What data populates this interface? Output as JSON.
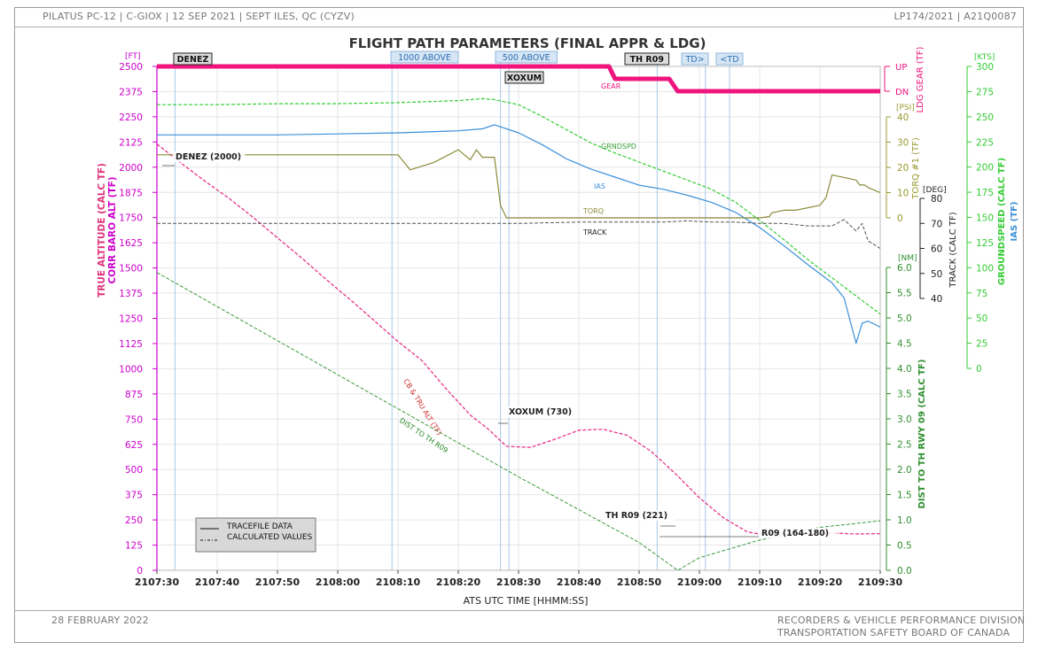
{
  "header": {
    "left": "PILATUS PC-12 | C-GIOX | 12 SEP 2021 | SEPT ILES, QC (CYZV)",
    "right": "LP174/2021 | A21Q0087"
  },
  "footer": {
    "date": "28 FEBRUARY 2022",
    "division": "RECORDERS & VEHICLE PERFORMANCE DIVISION",
    "board": "TRANSPORTATION SAFETY BOARD OF CANADA"
  },
  "colors": {
    "altitude": "#e8338a",
    "gear": "#f0147e",
    "groundspeed": "#33cc33",
    "ias": "#3a8fd8",
    "torq": "#8a8a3a",
    "track": "#555555",
    "distance": "#3a9a3a",
    "axis_left": "#cc00cc",
    "axis_gs": "#33cc33",
    "axis_ias": "#3a8fd8",
    "axis_torq": "#9a9a30",
    "axis_track": "#222222",
    "axis_dist": "#2f8f2f",
    "event_line": "#a8c8e8"
  },
  "chart_data": {
    "type": "line",
    "title": "FLIGHT PATH PARAMETERS (FINAL APPR & LDG)",
    "xlabel": "ATS UTC TIME [HHMM:SS]",
    "x_ticks": [
      "2107:30",
      "2107:40",
      "2107:50",
      "2108:00",
      "2108:10",
      "2108:20",
      "2108:30",
      "2108:40",
      "2108:50",
      "2109:00",
      "2109:10",
      "2109:20",
      "2109:30"
    ],
    "xlim_seconds_after_2107_30": [
      0,
      60
    ],
    "axes": {
      "altitude": {
        "unit": "[FT]",
        "label": "TRUE ALTITUDE (CALC TF)",
        "label2": "CORR BARO ALT (TF)",
        "range": [
          0,
          2500
        ],
        "ticks": [
          "0",
          "125",
          "250",
          "375",
          "500",
          "625",
          "750",
          "875",
          "1000",
          "1125",
          "1250",
          "1375",
          "1500",
          "1625",
          "1750",
          "1875",
          "2000",
          "2125",
          "2250",
          "2375",
          "2500"
        ]
      },
      "gear": {
        "label": "LDG GEAR (TF)",
        "states": [
          "UP",
          "DN"
        ]
      },
      "torq": {
        "unit": "[PSI]",
        "label": "TORQ #1 (TF)",
        "range": [
          0,
          40
        ],
        "ticks": [
          "0",
          "10",
          "20",
          "30",
          "40"
        ]
      },
      "track": {
        "unit": "[DEG]",
        "label": "TRACK (CALC TF)",
        "range": [
          40,
          80
        ],
        "ticks": [
          "40",
          "50",
          "60",
          "70",
          "80"
        ]
      },
      "distance": {
        "unit": "[NM]",
        "label": "DIST TO TH RWY 09 (CALC TF)",
        "range": [
          0,
          6
        ],
        "ticks": [
          "0.0",
          "0.5",
          "1.0",
          "1.5",
          "2.0",
          "2.5",
          "3.0",
          "3.5",
          "4.0",
          "4.5",
          "5.0",
          "5.5",
          "6.0"
        ]
      },
      "speed": {
        "unit": "[KTS]",
        "label_gs": "GROUNDSPEED (CALC TF)",
        "label_ias": "IAS (TF)",
        "range": [
          0,
          300
        ],
        "ticks": [
          "0",
          "25",
          "50",
          "75",
          "100",
          "125",
          "150",
          "175",
          "200",
          "225",
          "250",
          "275",
          "300"
        ]
      }
    },
    "series": [
      {
        "name": "CB & TRU ALT (TF)",
        "axis": "altitude",
        "x": [
          0,
          2,
          4,
          6,
          8,
          10,
          12,
          14,
          16,
          18,
          20,
          22,
          24,
          26,
          27.5,
          29,
          31,
          33,
          35,
          37,
          39,
          41,
          43,
          45,
          47,
          49,
          50,
          52,
          54,
          56,
          58,
          60
        ],
        "y": [
          2115,
          2020,
          1930,
          1845,
          1750,
          1650,
          1550,
          1445,
          1345,
          1240,
          1135,
          1040,
          900,
          770,
          700,
          615,
          610,
          650,
          695,
          700,
          670,
          590,
          480,
          360,
          260,
          190,
          180,
          180,
          180,
          185,
          180,
          182
        ]
      },
      {
        "name": "GRNDSPD",
        "axis": "speed",
        "x": [
          0,
          5,
          10,
          15,
          20,
          25,
          27,
          28,
          30,
          32,
          34,
          36,
          38,
          40,
          42,
          44,
          46,
          48,
          50,
          52,
          54,
          56,
          58,
          60
        ],
        "y": [
          262,
          262,
          263,
          263,
          264,
          266,
          268,
          267,
          262,
          250,
          237,
          224,
          214,
          205,
          196,
          187,
          178,
          165,
          147,
          128,
          108,
          90,
          72,
          54
        ]
      },
      {
        "name": "IAS",
        "axis": "speed",
        "x": [
          0,
          5,
          10,
          15,
          20,
          25,
          27,
          28,
          30,
          32,
          34,
          36,
          38,
          40,
          42,
          44,
          46,
          48,
          50,
          52,
          54,
          56,
          57,
          58,
          58.5,
          59,
          60
        ],
        "y": [
          232,
          232,
          232,
          233,
          234,
          236,
          238,
          242,
          234,
          222,
          208,
          198,
          190,
          182,
          178,
          172,
          165,
          155,
          140,
          122,
          103,
          85,
          70,
          25,
          45,
          47,
          41
        ]
      },
      {
        "name": "TORQ",
        "axis": "torq",
        "x": [
          0,
          5,
          10,
          15,
          20,
          21,
          23,
          25,
          26,
          26.5,
          27,
          27.5,
          28,
          28.5,
          29,
          30,
          35,
          40,
          45,
          50,
          50.8,
          51,
          52,
          53,
          55,
          55.5,
          56,
          58,
          58.3,
          58.7,
          59,
          60
        ],
        "y": [
          25,
          25,
          25,
          25,
          25,
          19,
          22,
          27,
          23,
          27,
          24,
          24,
          24,
          5,
          0,
          0,
          0,
          0,
          0,
          0,
          0.5,
          2,
          3,
          3,
          5,
          8,
          17,
          15,
          13,
          13,
          12,
          10
        ]
      },
      {
        "name": "TRACK",
        "axis": "track",
        "x": [
          0,
          5,
          10,
          15,
          20,
          25,
          28,
          30,
          35,
          40,
          42,
          44,
          46,
          48,
          50,
          52,
          54,
          56,
          57,
          58,
          58.5,
          59,
          60
        ],
        "y": [
          70,
          70,
          70,
          70,
          70,
          70,
          70,
          70,
          70.5,
          70.5,
          70.5,
          71,
          70.5,
          70.5,
          70,
          70,
          69,
          69,
          71.5,
          67,
          70,
          63,
          60
        ]
      },
      {
        "name": "DIST TO TH R09",
        "axis": "distance",
        "x": [
          0,
          10,
          20,
          30,
          40,
          43.2,
          45,
          50,
          55,
          60
        ],
        "y": [
          5.9,
          4.55,
          3.2,
          1.85,
          0.55,
          0.0,
          0.25,
          0.6,
          0.85,
          0.98
        ]
      },
      {
        "name": "GEAR",
        "axis": "gear",
        "x": [
          0,
          37.5,
          38,
          42.5,
          43.2,
          60
        ],
        "y": [
          "UP",
          "UP",
          "MID",
          "MID",
          "DN",
          "DN"
        ]
      }
    ],
    "series_labels": [
      "CB & TRU ALT (TF)",
      "DIST TO TH R09",
      "GEAR",
      "GRNDSPD",
      "IAS",
      "TORQ",
      "TRACK"
    ],
    "events": [
      {
        "label": "DENEZ",
        "x": 1.5
      },
      {
        "label": "1000 ABOVE",
        "x": 19.5
      },
      {
        "label": "500 ABOVE",
        "x": 28.5
      },
      {
        "label": "XOXUM",
        "x": 29.2
      },
      {
        "label": "TH R09",
        "x": 41.5
      },
      {
        "label": "TD>",
        "x": 45.5
      },
      {
        "label": "<TD",
        "x": 47.5
      }
    ],
    "annotations": [
      "DENEZ (2000)",
      "XOXUM (730)",
      "TH R09 (221)",
      "R09 (164-180)"
    ],
    "legend": {
      "position": "bottom-left",
      "items": [
        "TRACEFILE DATA",
        "CALCULATED VALUES"
      ]
    }
  }
}
